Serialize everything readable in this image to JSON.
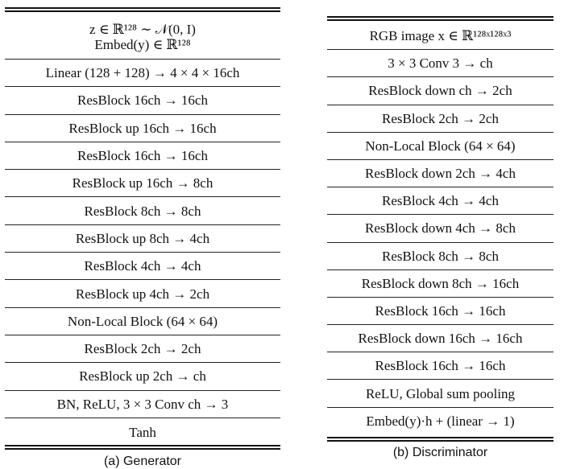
{
  "generator": {
    "caption": "(a)  Generator",
    "input": {
      "line1": "z ∈ ℝ¹²⁸ ∼ 𝒩(0, I)",
      "line2": "Embed(y) ∈ ℝ¹²⁸"
    },
    "rows": [
      "Linear (128 + 128) → 4 × 4 × 16ch",
      "ResBlock 16ch → 16ch",
      "ResBlock up 16ch → 16ch",
      "ResBlock 16ch → 16ch",
      "ResBlock up 16ch → 8ch",
      "ResBlock 8ch → 8ch",
      "ResBlock up 8ch → 4ch",
      "ResBlock 4ch → 4ch",
      "ResBlock up 4ch → 2ch",
      "Non-Local Block (64 × 64)",
      "ResBlock 2ch → 2ch",
      "ResBlock up 2ch → ch",
      "BN, ReLU, 3 × 3 Conv ch → 3",
      "Tanh"
    ]
  },
  "discriminator": {
    "caption": "(b)  Discriminator",
    "rows": [
      "RGB image x ∈ ℝ¹²⁸ˣ¹²⁸ˣ³",
      "3 × 3 Conv 3 → ch",
      "ResBlock down ch → 2ch",
      "ResBlock 2ch → 2ch",
      "Non-Local Block (64 × 64)",
      "ResBlock down 2ch → 4ch",
      "ResBlock 4ch → 4ch",
      "ResBlock down 4ch → 8ch",
      "ResBlock 8ch → 8ch",
      "ResBlock down 8ch → 16ch",
      "ResBlock 16ch → 16ch",
      "ResBlock down 16ch → 16ch",
      "ResBlock 16ch → 16ch",
      "ReLU, Global sum pooling",
      "Embed(y)·h + (linear → 1)"
    ]
  }
}
